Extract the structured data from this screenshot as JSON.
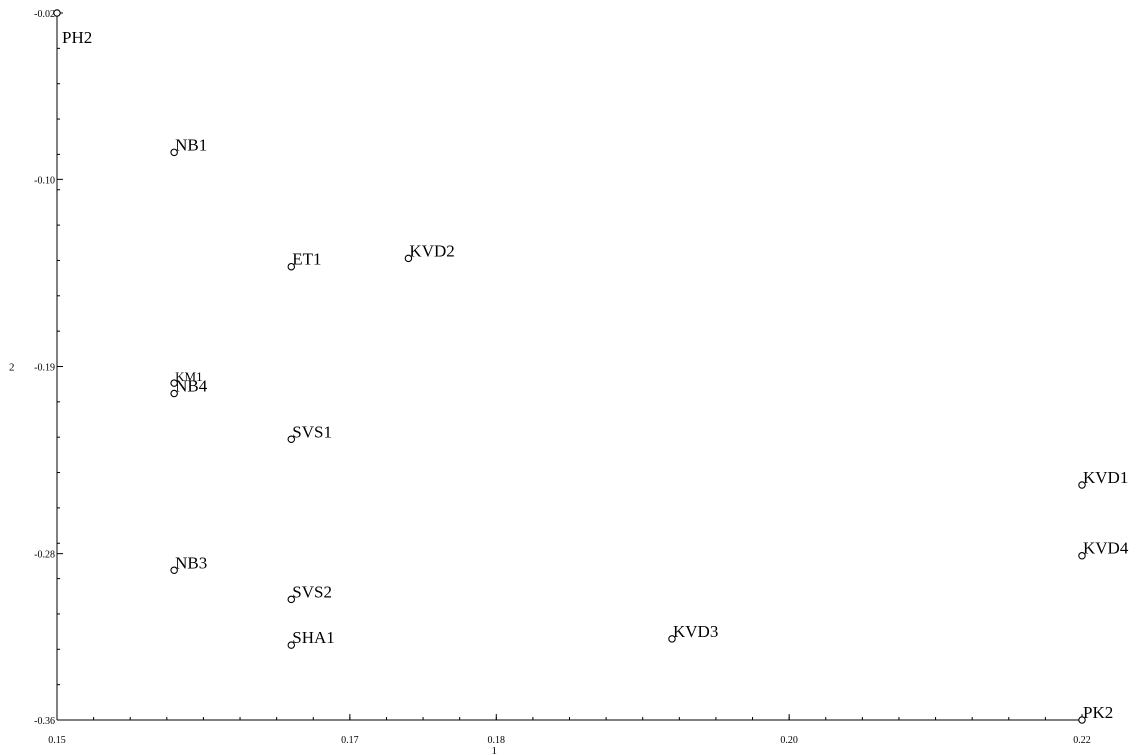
{
  "chart_data": {
    "type": "scatter",
    "xlabel": "1",
    "ylabel": "2",
    "xlim": [
      0.15,
      0.22
    ],
    "ylim": [
      -0.36,
      -0.02
    ],
    "grid": false,
    "x_ticks": [
      {
        "value": 0.15,
        "label": "0.15"
      },
      {
        "value": 0.17,
        "label": "0.17"
      },
      {
        "value": 0.18,
        "label": "0.18"
      },
      {
        "value": 0.2,
        "label": "0.20"
      },
      {
        "value": 0.22,
        "label": "0.22"
      }
    ],
    "y_ticks": [
      {
        "value": -0.02,
        "label": "-0.02"
      },
      {
        "value": -0.1,
        "label": "-0.10"
      },
      {
        "value": -0.19,
        "label": "-0.19"
      },
      {
        "value": -0.28,
        "label": "-0.28"
      },
      {
        "value": -0.36,
        "label": "-0.36"
      }
    ],
    "points": [
      {
        "label": "PH2",
        "x": 0.15,
        "y": -0.02
      },
      {
        "label": "NB1",
        "x": 0.158,
        "y": -0.087
      },
      {
        "label": "ET1",
        "x": 0.166,
        "y": -0.142
      },
      {
        "label": "KVD2",
        "x": 0.174,
        "y": -0.138
      },
      {
        "label": "KM1",
        "x": 0.158,
        "y": -0.198,
        "small": true
      },
      {
        "label": "NB4",
        "x": 0.158,
        "y": -0.203
      },
      {
        "label": "SVS1",
        "x": 0.166,
        "y": -0.225
      },
      {
        "label": "KVD1",
        "x": 0.22,
        "y": -0.247
      },
      {
        "label": "NB3",
        "x": 0.158,
        "y": -0.288
      },
      {
        "label": "SVS2",
        "x": 0.166,
        "y": -0.302
      },
      {
        "label": "KVD4",
        "x": 0.22,
        "y": -0.281
      },
      {
        "label": "KVD3",
        "x": 0.192,
        "y": -0.321
      },
      {
        "label": "SHA1",
        "x": 0.166,
        "y": -0.324
      },
      {
        "label": "PK2",
        "x": 0.22,
        "y": -0.36
      }
    ]
  }
}
